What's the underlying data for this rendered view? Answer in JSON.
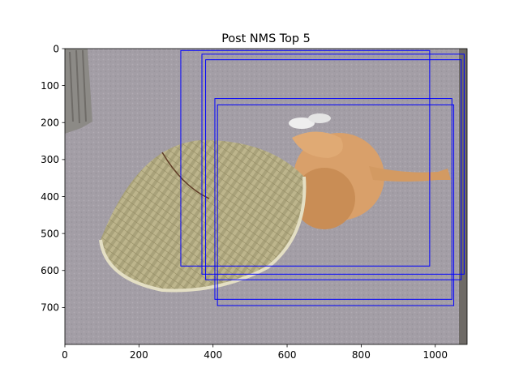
{
  "chart_data": {
    "type": "image_with_boxes",
    "title": "Post NMS Top 5",
    "xlabel": "",
    "ylabel": "",
    "xlim": [
      0,
      1086
    ],
    "ylim": [
      800,
      0
    ],
    "x_ticks": [
      0,
      200,
      400,
      600,
      800,
      1000
    ],
    "y_ticks": [
      0,
      100,
      200,
      300,
      400,
      500,
      600,
      700
    ],
    "x_tick_labels": [
      "0",
      "200",
      "400",
      "600",
      "800",
      "1000"
    ],
    "y_tick_labels": [
      "0",
      "100",
      "200",
      "300",
      "400",
      "500",
      "600",
      "700"
    ],
    "box_color": "#0000ff",
    "boxes": [
      {
        "x1": 313,
        "y1": 5,
        "x2": 985,
        "y2": 588
      },
      {
        "x1": 370,
        "y1": 15,
        "x2": 1078,
        "y2": 610
      },
      {
        "x1": 380,
        "y1": 30,
        "x2": 1070,
        "y2": 625
      },
      {
        "x1": 405,
        "y1": 135,
        "x2": 1045,
        "y2": 678
      },
      {
        "x1": 412,
        "y1": 152,
        "x2": 1050,
        "y2": 695
      }
    ],
    "image_subject": "cat lying on carpet under a straw hat"
  }
}
